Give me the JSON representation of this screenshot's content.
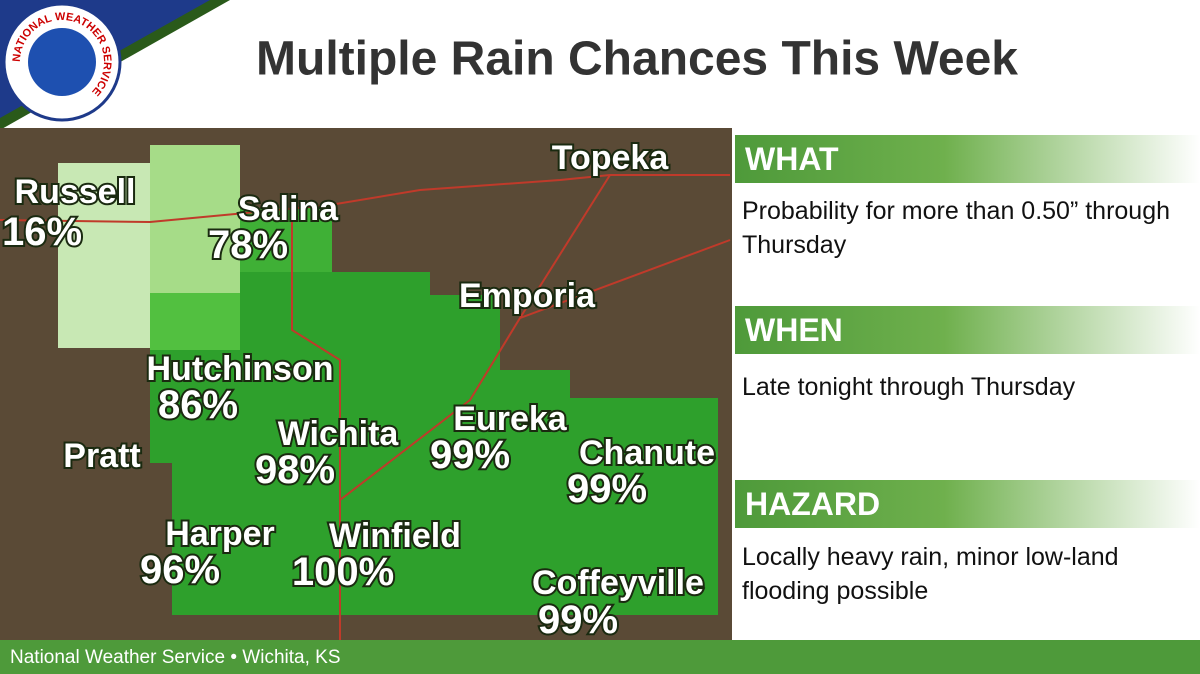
{
  "logo": "NATIONAL WEATHER SERVICE",
  "title": "Multiple Rain Chances This Week",
  "map": {
    "cities": [
      {
        "name": "Russell",
        "probability": "16%"
      },
      {
        "name": "Salina",
        "probability": "78%"
      },
      {
        "name": "Hutchinson",
        "probability": "86%"
      },
      {
        "name": "Wichita",
        "probability": "98%"
      },
      {
        "name": "Eureka",
        "probability": "99%"
      },
      {
        "name": "Chanute",
        "probability": "99%"
      },
      {
        "name": "Harper",
        "probability": "96%"
      },
      {
        "name": "Winfield",
        "probability": "100%"
      },
      {
        "name": "Coffeyville",
        "probability": "99%"
      }
    ],
    "places": [
      "Topeka",
      "Emporia",
      "Pratt"
    ]
  },
  "panels": [
    {
      "heading": "WHAT",
      "text": "Probability for more than 0.50” through Thursday"
    },
    {
      "heading": "WHEN",
      "text": "Late tonight through Thursday"
    },
    {
      "heading": "HAZARD",
      "text": "Locally heavy rain, minor low-land flooding possible"
    }
  ],
  "footer": "National Weather Service • Wichita, KS"
}
